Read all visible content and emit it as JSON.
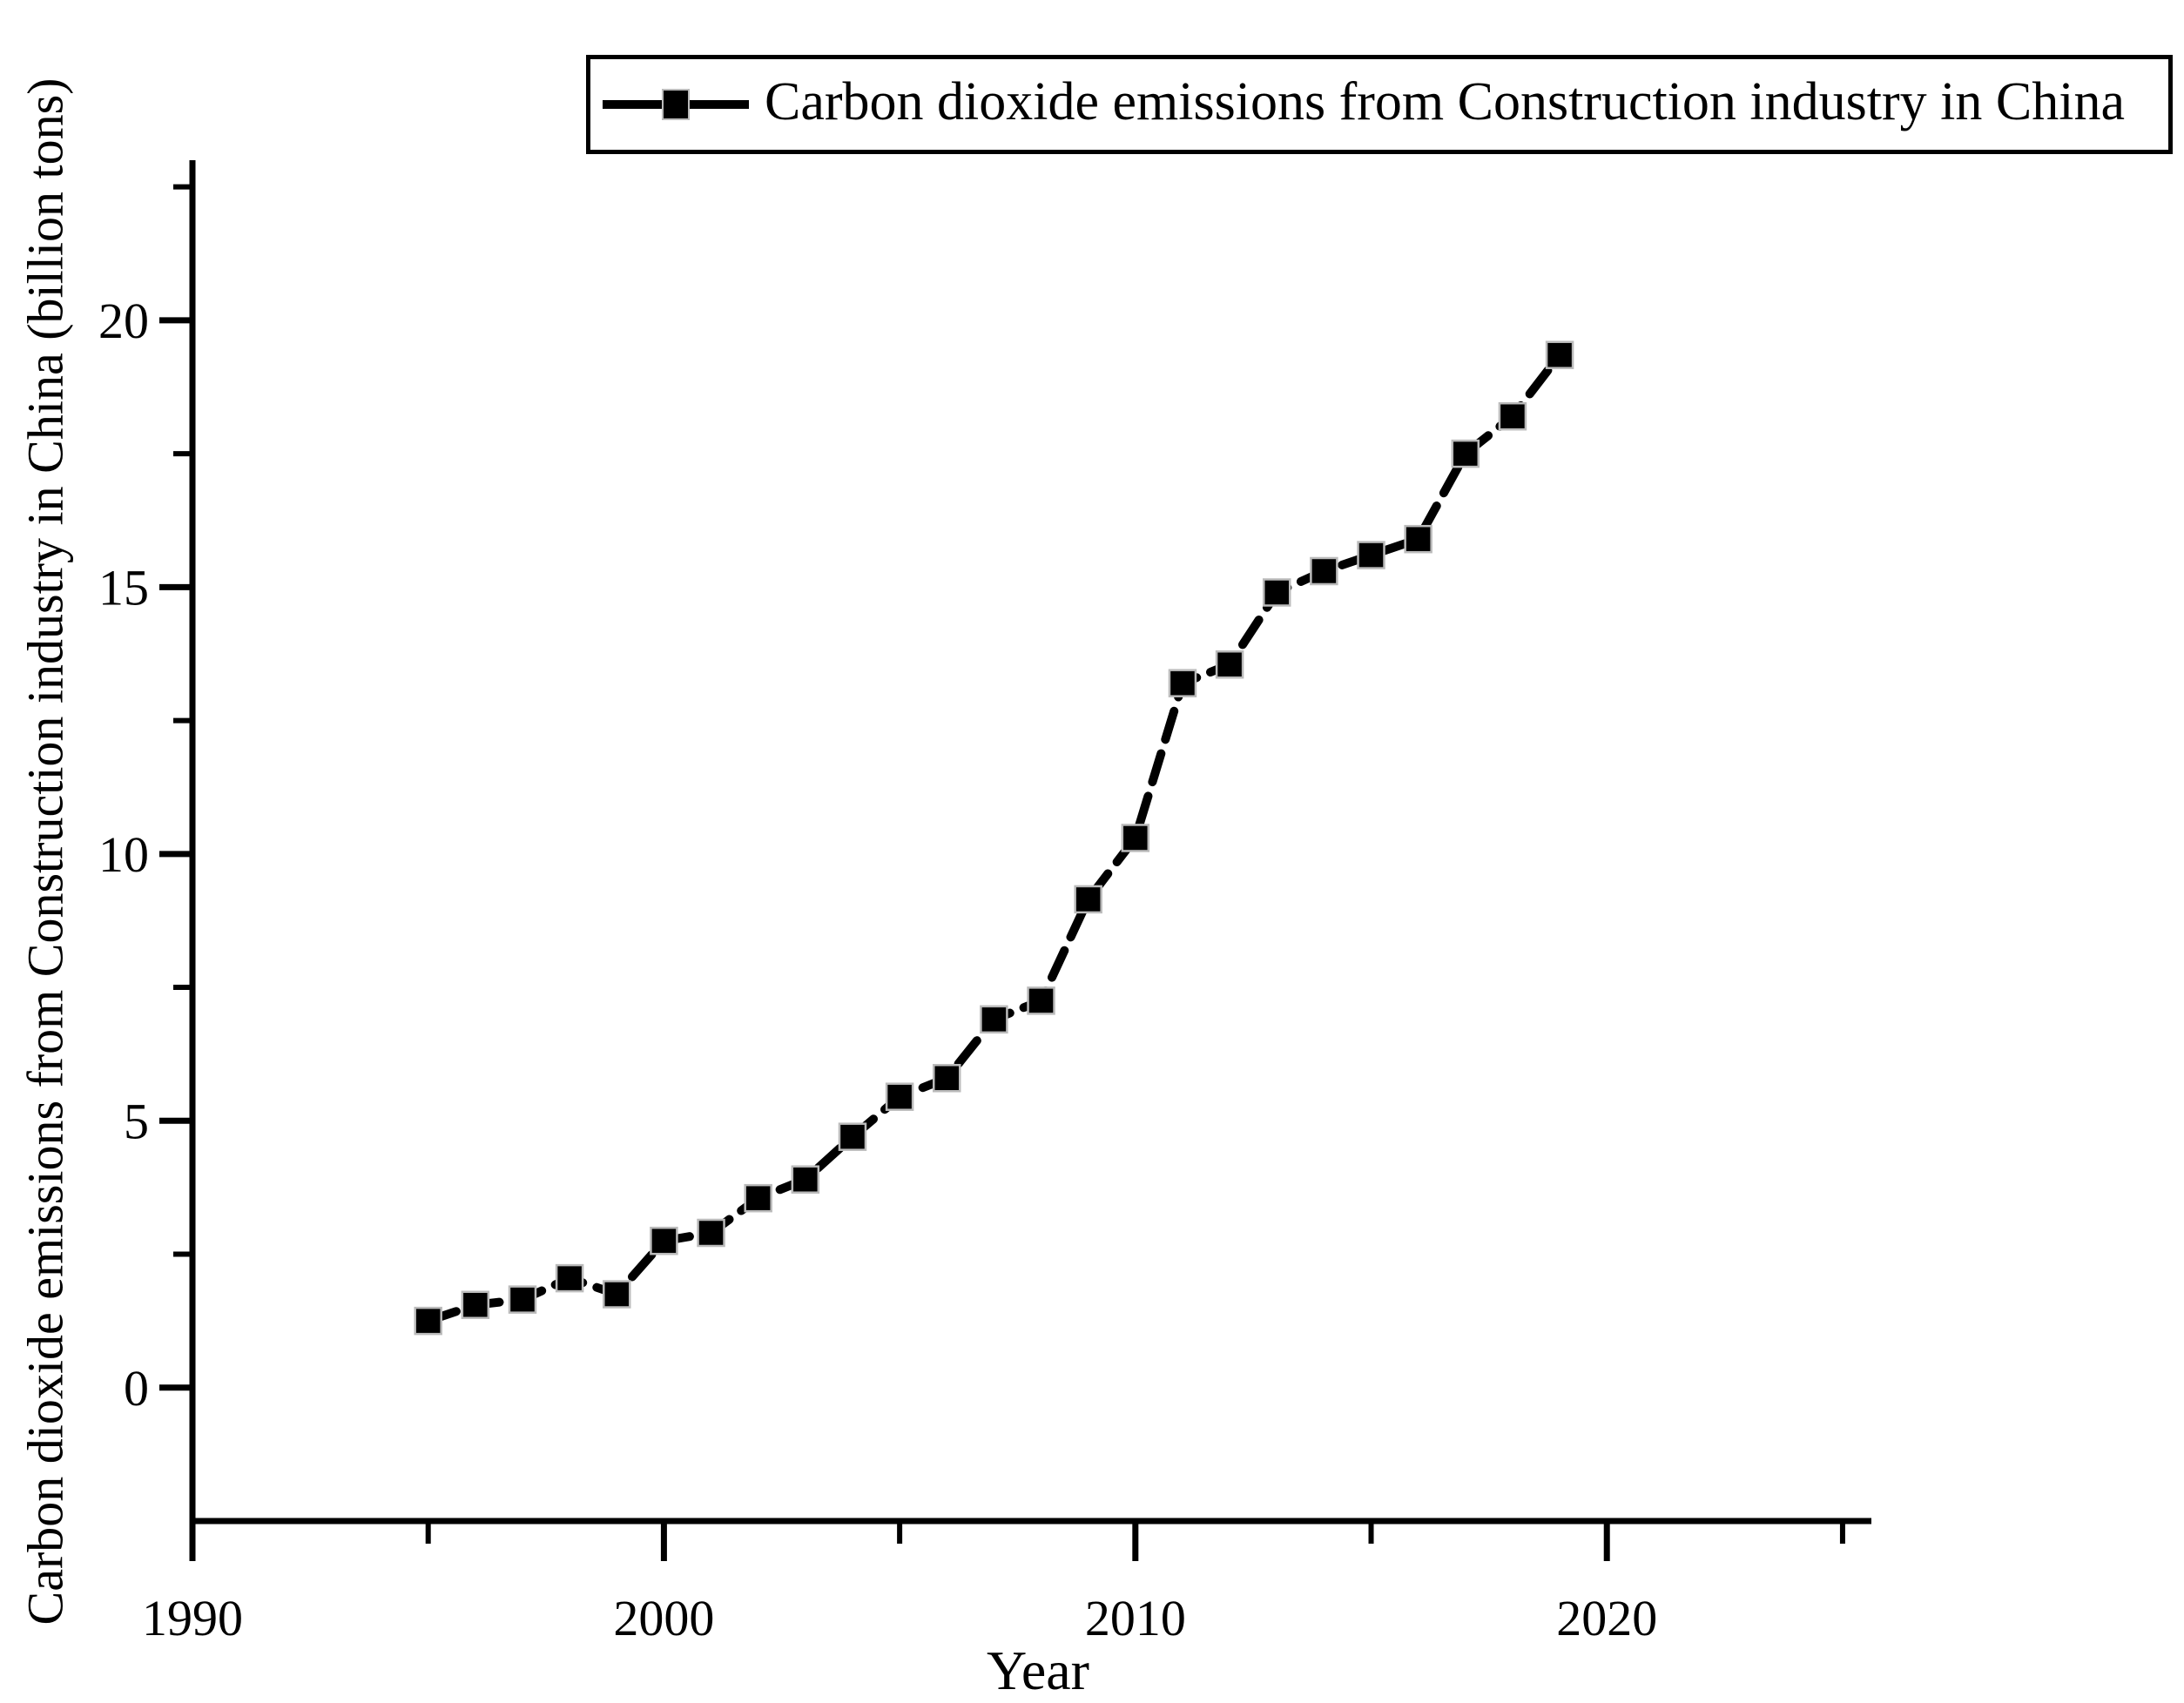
{
  "figure": {
    "background": "#ffffff",
    "line_color": "#000000",
    "marker_edge_color": "#bbbbbb"
  },
  "legend": {
    "label": "Carbon dioxide emissions from Construction industry in China",
    "marker": "filled-square-on-line",
    "position": "top"
  },
  "axes": {
    "x": {
      "title": "Year",
      "major_ticks": [
        1990,
        2000,
        2010,
        2020
      ],
      "minor_ticks": [
        1995,
        2005,
        2015,
        2025
      ],
      "range": [
        1990,
        2025.5
      ]
    },
    "y": {
      "title": "Carbon dioxide emissions from Construction industry in China (billion tons)",
      "major_ticks": [
        0,
        5,
        10,
        15,
        20
      ],
      "minor_ticks": [
        2.5,
        7.5,
        12.5,
        17.5,
        22.5
      ],
      "range": [
        -2.5,
        23
      ]
    }
  },
  "chart_data": {
    "type": "line",
    "title": "",
    "xlabel": "Year",
    "ylabel": "Carbon dioxide emissions from Construction industry in China (billion tons)",
    "legend": [
      "Carbon dioxide emissions from Construction industry in China"
    ],
    "legend_position": "top",
    "grid": false,
    "marker": "filled-square",
    "line_style": "dashed",
    "color": "#000000",
    "xlim": [
      1990,
      2025.5
    ],
    "ylim": [
      -2.5,
      23
    ],
    "x": [
      1995,
      1996,
      1997,
      1998,
      1999,
      2000,
      2001,
      2002,
      2003,
      2004,
      2005,
      2006,
      2007,
      2008,
      2009,
      2010,
      2011,
      2012,
      2013,
      2014,
      2015,
      2016,
      2017,
      2018,
      2019
    ],
    "series": [
      {
        "name": "Carbon dioxide emissions from Construction industry in China",
        "values": [
          1.25,
          1.55,
          1.65,
          2.05,
          1.75,
          2.75,
          2.9,
          3.55,
          3.9,
          4.7,
          5.45,
          5.8,
          6.9,
          7.25,
          9.15,
          10.3,
          13.2,
          13.55,
          14.9,
          15.3,
          15.6,
          15.9,
          17.5,
          18.2,
          19.35
        ]
      }
    ]
  }
}
